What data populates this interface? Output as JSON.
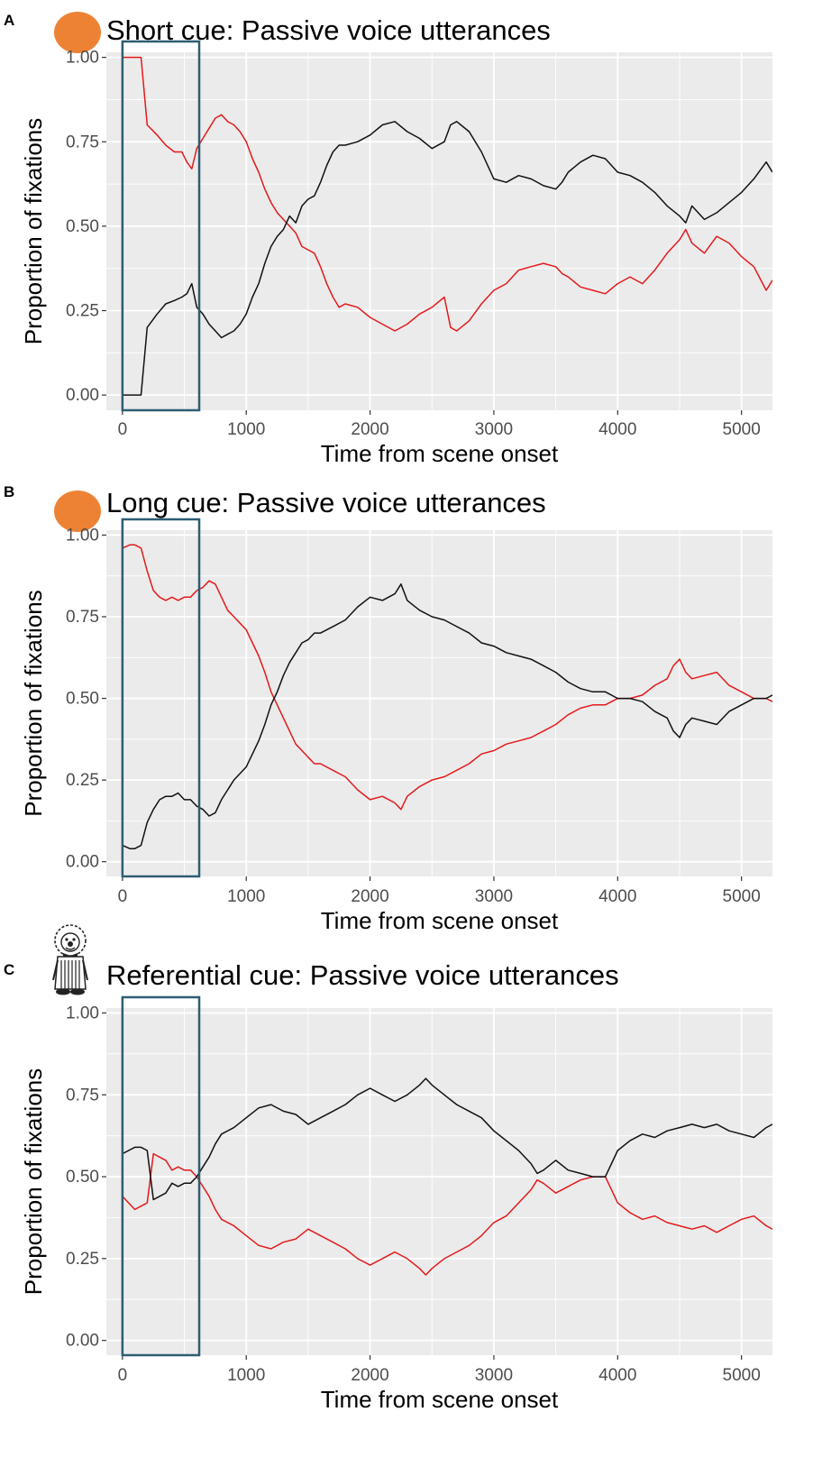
{
  "figure": {
    "colors": {
      "panel_bg": "#ebebeb",
      "grid": "#ffffff",
      "series_red": "#e31a1c",
      "series_black": "#111111",
      "highlight_box": "#2e5d73",
      "cue_circle": "#ee8234"
    },
    "icons": [
      "orange-circle-cue-icon",
      "orange-circle-cue-icon",
      "clown-character-icon"
    ]
  },
  "chart_data": [
    {
      "type": "line",
      "panel": "A",
      "title": "Short cue: Passive voice utterances",
      "xlabel": "Time from scene onset",
      "ylabel": "Proportion of fixations",
      "xlim": [
        -130,
        5250
      ],
      "ylim": [
        -0.045,
        1.015
      ],
      "xticks": [
        0,
        1000,
        2000,
        3000,
        4000,
        5000
      ],
      "xtick_labels": [
        "0",
        "1000",
        "2000",
        "3000",
        "4000",
        "5000"
      ],
      "yticks": [
        0,
        0.25,
        0.5,
        0.75,
        1.0
      ],
      "ytick_labels": [
        "0.00",
        "0.25",
        "0.50",
        "0.75",
        "1.00"
      ],
      "highlight_window": [
        0,
        620
      ],
      "series": [
        {
          "name": "red",
          "color": "#e31a1c",
          "x": [
            0,
            80,
            150,
            200,
            280,
            350,
            420,
            480,
            520,
            560,
            600,
            650,
            700,
            750,
            800,
            850,
            900,
            950,
            1000,
            1050,
            1100,
            1150,
            1200,
            1250,
            1300,
            1350,
            1400,
            1450,
            1500,
            1550,
            1600,
            1650,
            1700,
            1750,
            1800,
            1900,
            2000,
            2100,
            2200,
            2300,
            2400,
            2500,
            2600,
            2650,
            2700,
            2800,
            2900,
            3000,
            3100,
            3200,
            3300,
            3400,
            3500,
            3550,
            3600,
            3700,
            3800,
            3900,
            4000,
            4100,
            4200,
            4300,
            4400,
            4500,
            4550,
            4600,
            4700,
            4800,
            4900,
            5000,
            5100,
            5200,
            5250
          ],
          "y": [
            1.0,
            1.0,
            1.0,
            0.8,
            0.77,
            0.74,
            0.72,
            0.72,
            0.69,
            0.67,
            0.73,
            0.76,
            0.79,
            0.82,
            0.83,
            0.81,
            0.8,
            0.78,
            0.75,
            0.7,
            0.66,
            0.61,
            0.57,
            0.54,
            0.52,
            0.5,
            0.48,
            0.44,
            0.43,
            0.42,
            0.38,
            0.33,
            0.29,
            0.26,
            0.27,
            0.26,
            0.23,
            0.21,
            0.19,
            0.21,
            0.24,
            0.26,
            0.29,
            0.2,
            0.19,
            0.22,
            0.27,
            0.31,
            0.33,
            0.37,
            0.38,
            0.39,
            0.38,
            0.36,
            0.35,
            0.32,
            0.31,
            0.3,
            0.33,
            0.35,
            0.33,
            0.37,
            0.42,
            0.46,
            0.49,
            0.45,
            0.42,
            0.47,
            0.45,
            0.41,
            0.38,
            0.31,
            0.34
          ]
        },
        {
          "name": "black",
          "color": "#111111",
          "x": [
            0,
            80,
            150,
            200,
            280,
            350,
            420,
            480,
            520,
            560,
            600,
            650,
            700,
            750,
            800,
            850,
            900,
            950,
            1000,
            1050,
            1100,
            1150,
            1200,
            1250,
            1300,
            1350,
            1400,
            1450,
            1500,
            1550,
            1600,
            1650,
            1700,
            1750,
            1800,
            1900,
            2000,
            2100,
            2200,
            2300,
            2400,
            2500,
            2600,
            2650,
            2700,
            2800,
            2900,
            3000,
            3100,
            3200,
            3300,
            3400,
            3500,
            3550,
            3600,
            3700,
            3800,
            3900,
            4000,
            4100,
            4200,
            4300,
            4400,
            4500,
            4550,
            4600,
            4700,
            4800,
            4900,
            5000,
            5100,
            5200,
            5250
          ],
          "y": [
            0.0,
            0.0,
            0.0,
            0.2,
            0.24,
            0.27,
            0.28,
            0.29,
            0.3,
            0.33,
            0.26,
            0.24,
            0.21,
            0.19,
            0.17,
            0.18,
            0.19,
            0.21,
            0.24,
            0.29,
            0.33,
            0.39,
            0.44,
            0.47,
            0.49,
            0.53,
            0.51,
            0.56,
            0.58,
            0.59,
            0.63,
            0.68,
            0.72,
            0.74,
            0.74,
            0.75,
            0.77,
            0.8,
            0.81,
            0.78,
            0.76,
            0.73,
            0.75,
            0.8,
            0.81,
            0.78,
            0.72,
            0.64,
            0.63,
            0.65,
            0.64,
            0.62,
            0.61,
            0.63,
            0.66,
            0.69,
            0.71,
            0.7,
            0.66,
            0.65,
            0.63,
            0.6,
            0.56,
            0.53,
            0.51,
            0.56,
            0.52,
            0.54,
            0.57,
            0.6,
            0.64,
            0.69,
            0.66
          ]
        }
      ]
    },
    {
      "type": "line",
      "panel": "B",
      "title": "Long cue: Passive voice utterances",
      "xlabel": "Time from scene onset",
      "ylabel": "Proportion of fixations",
      "xlim": [
        -130,
        5250
      ],
      "ylim": [
        -0.045,
        1.015
      ],
      "xticks": [
        0,
        1000,
        2000,
        3000,
        4000,
        5000
      ],
      "xtick_labels": [
        "0",
        "1000",
        "2000",
        "3000",
        "4000",
        "5000"
      ],
      "yticks": [
        0,
        0.25,
        0.5,
        0.75,
        1.0
      ],
      "ytick_labels": [
        "0.00",
        "0.25",
        "0.50",
        "0.75",
        "1.00"
      ],
      "highlight_window": [
        0,
        620
      ],
      "series": [
        {
          "name": "red",
          "color": "#e31a1c",
          "x": [
            0,
            60,
            100,
            150,
            200,
            250,
            300,
            350,
            400,
            450,
            500,
            550,
            600,
            650,
            700,
            750,
            800,
            850,
            900,
            950,
            1000,
            1050,
            1100,
            1150,
            1200,
            1250,
            1300,
            1350,
            1400,
            1450,
            1500,
            1550,
            1600,
            1700,
            1800,
            1900,
            2000,
            2100,
            2200,
            2250,
            2300,
            2400,
            2500,
            2600,
            2700,
            2800,
            2900,
            3000,
            3100,
            3200,
            3300,
            3400,
            3500,
            3600,
            3700,
            3800,
            3900,
            4000,
            4100,
            4200,
            4300,
            4400,
            4450,
            4500,
            4550,
            4600,
            4700,
            4800,
            4900,
            5000,
            5100,
            5200,
            5250
          ],
          "y": [
            0.96,
            0.97,
            0.97,
            0.96,
            0.89,
            0.83,
            0.81,
            0.8,
            0.81,
            0.8,
            0.81,
            0.81,
            0.83,
            0.84,
            0.86,
            0.85,
            0.81,
            0.77,
            0.75,
            0.73,
            0.71,
            0.67,
            0.63,
            0.58,
            0.52,
            0.48,
            0.44,
            0.4,
            0.36,
            0.34,
            0.32,
            0.3,
            0.3,
            0.28,
            0.26,
            0.22,
            0.19,
            0.2,
            0.18,
            0.16,
            0.2,
            0.23,
            0.25,
            0.26,
            0.28,
            0.3,
            0.33,
            0.34,
            0.36,
            0.37,
            0.38,
            0.4,
            0.42,
            0.45,
            0.47,
            0.48,
            0.48,
            0.5,
            0.5,
            0.51,
            0.54,
            0.56,
            0.6,
            0.62,
            0.58,
            0.56,
            0.57,
            0.58,
            0.54,
            0.52,
            0.5,
            0.5,
            0.49
          ]
        },
        {
          "name": "black",
          "color": "#111111",
          "x": [
            0,
            60,
            100,
            150,
            200,
            250,
            300,
            350,
            400,
            450,
            500,
            550,
            600,
            650,
            700,
            750,
            800,
            850,
            900,
            950,
            1000,
            1050,
            1100,
            1150,
            1200,
            1250,
            1300,
            1350,
            1400,
            1450,
            1500,
            1550,
            1600,
            1700,
            1800,
            1900,
            2000,
            2100,
            2200,
            2250,
            2300,
            2400,
            2500,
            2600,
            2700,
            2800,
            2900,
            3000,
            3100,
            3200,
            3300,
            3400,
            3500,
            3600,
            3700,
            3800,
            3900,
            4000,
            4100,
            4200,
            4300,
            4400,
            4450,
            4500,
            4550,
            4600,
            4700,
            4800,
            4900,
            5000,
            5100,
            5200,
            5250
          ],
          "y": [
            0.05,
            0.04,
            0.04,
            0.05,
            0.12,
            0.16,
            0.19,
            0.2,
            0.2,
            0.21,
            0.19,
            0.19,
            0.17,
            0.16,
            0.14,
            0.15,
            0.19,
            0.22,
            0.25,
            0.27,
            0.29,
            0.33,
            0.37,
            0.42,
            0.48,
            0.52,
            0.57,
            0.61,
            0.64,
            0.67,
            0.68,
            0.7,
            0.7,
            0.72,
            0.74,
            0.78,
            0.81,
            0.8,
            0.82,
            0.85,
            0.8,
            0.77,
            0.75,
            0.74,
            0.72,
            0.7,
            0.67,
            0.66,
            0.64,
            0.63,
            0.62,
            0.6,
            0.58,
            0.55,
            0.53,
            0.52,
            0.52,
            0.5,
            0.5,
            0.49,
            0.46,
            0.44,
            0.4,
            0.38,
            0.42,
            0.44,
            0.43,
            0.42,
            0.46,
            0.48,
            0.5,
            0.5,
            0.51
          ]
        }
      ]
    },
    {
      "type": "line",
      "panel": "C",
      "title": "Referential cue: Passive voice utterances",
      "xlabel": "Time from scene onset",
      "ylabel": "Proportion of fixations",
      "xlim": [
        -130,
        5250
      ],
      "ylim": [
        -0.045,
        1.015
      ],
      "xticks": [
        0,
        1000,
        2000,
        3000,
        4000,
        5000
      ],
      "xtick_labels": [
        "0",
        "1000",
        "2000",
        "3000",
        "4000",
        "5000"
      ],
      "yticks": [
        0,
        0.25,
        0.5,
        0.75,
        1.0
      ],
      "ytick_labels": [
        "0.00",
        "0.25",
        "0.50",
        "0.75",
        "1.00"
      ],
      "highlight_window": [
        0,
        620
      ],
      "series": [
        {
          "name": "red",
          "color": "#e31a1c",
          "x": [
            0,
            50,
            100,
            150,
            200,
            250,
            300,
            350,
            400,
            450,
            500,
            550,
            600,
            650,
            700,
            750,
            800,
            900,
            1000,
            1100,
            1200,
            1300,
            1400,
            1500,
            1600,
            1700,
            1800,
            1900,
            2000,
            2100,
            2200,
            2300,
            2400,
            2450,
            2500,
            2600,
            2700,
            2800,
            2900,
            3000,
            3100,
            3200,
            3300,
            3350,
            3400,
            3500,
            3600,
            3700,
            3800,
            3900,
            4000,
            4100,
            4200,
            4300,
            4400,
            4500,
            4600,
            4700,
            4800,
            4900,
            5000,
            5100,
            5200,
            5250
          ],
          "y": [
            0.44,
            0.42,
            0.4,
            0.41,
            0.42,
            0.57,
            0.56,
            0.55,
            0.52,
            0.53,
            0.52,
            0.52,
            0.5,
            0.47,
            0.44,
            0.4,
            0.37,
            0.35,
            0.32,
            0.29,
            0.28,
            0.3,
            0.31,
            0.34,
            0.32,
            0.3,
            0.28,
            0.25,
            0.23,
            0.25,
            0.27,
            0.25,
            0.22,
            0.2,
            0.22,
            0.25,
            0.27,
            0.29,
            0.32,
            0.36,
            0.38,
            0.42,
            0.46,
            0.49,
            0.48,
            0.45,
            0.47,
            0.49,
            0.5,
            0.5,
            0.42,
            0.39,
            0.37,
            0.38,
            0.36,
            0.35,
            0.34,
            0.35,
            0.33,
            0.35,
            0.37,
            0.38,
            0.35,
            0.34
          ]
        },
        {
          "name": "black",
          "color": "#111111",
          "x": [
            0,
            50,
            100,
            150,
            200,
            250,
            300,
            350,
            400,
            450,
            500,
            550,
            600,
            650,
            700,
            750,
            800,
            900,
            1000,
            1100,
            1200,
            1300,
            1400,
            1500,
            1600,
            1700,
            1800,
            1900,
            2000,
            2100,
            2200,
            2300,
            2400,
            2450,
            2500,
            2600,
            2700,
            2800,
            2900,
            3000,
            3100,
            3200,
            3300,
            3350,
            3400,
            3500,
            3600,
            3700,
            3800,
            3900,
            4000,
            4100,
            4200,
            4300,
            4400,
            4500,
            4600,
            4700,
            4800,
            4900,
            5000,
            5100,
            5200,
            5250
          ],
          "y": [
            0.57,
            0.58,
            0.59,
            0.59,
            0.58,
            0.43,
            0.44,
            0.45,
            0.48,
            0.47,
            0.48,
            0.48,
            0.5,
            0.53,
            0.56,
            0.6,
            0.63,
            0.65,
            0.68,
            0.71,
            0.72,
            0.7,
            0.69,
            0.66,
            0.68,
            0.7,
            0.72,
            0.75,
            0.77,
            0.75,
            0.73,
            0.75,
            0.78,
            0.8,
            0.78,
            0.75,
            0.72,
            0.7,
            0.68,
            0.64,
            0.61,
            0.58,
            0.54,
            0.51,
            0.52,
            0.55,
            0.52,
            0.51,
            0.5,
            0.5,
            0.58,
            0.61,
            0.63,
            0.62,
            0.64,
            0.65,
            0.66,
            0.65,
            0.66,
            0.64,
            0.63,
            0.62,
            0.65,
            0.66
          ]
        }
      ]
    }
  ]
}
